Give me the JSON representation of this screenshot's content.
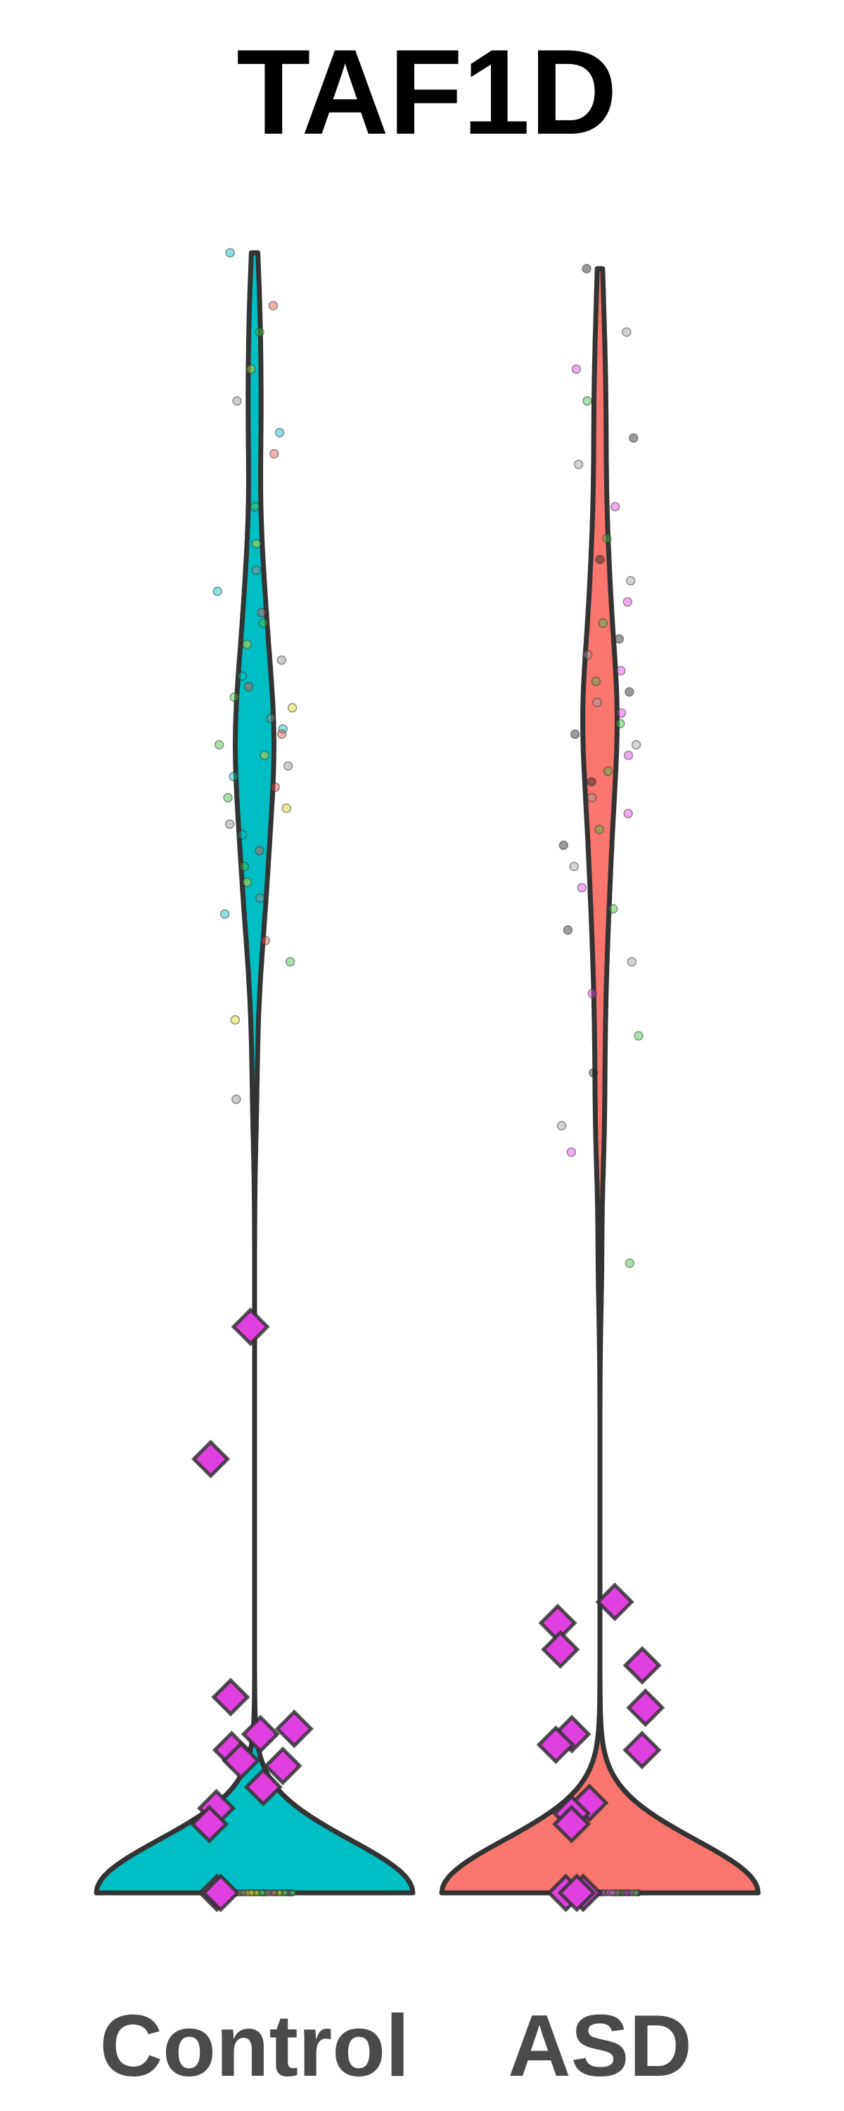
{
  "chart_data": {
    "type": "violin",
    "title": "TAF1D",
    "ylim": [
      0,
      3.2
    ],
    "groups": [
      {
        "name": "Control",
        "color": "#00bfc4",
        "point_colors": [
          "#00bfc4",
          "#e05050",
          "#40c040",
          "#d8d820",
          "#909090"
        ],
        "cells": [
          3.1,
          3.0,
          2.95,
          2.88,
          2.82,
          2.76,
          2.72,
          2.62,
          2.55,
          2.5,
          2.46,
          2.42,
          2.4,
          2.36,
          2.33,
          2.3,
          2.28,
          2.26,
          2.24,
          2.22,
          2.2,
          2.19,
          2.17,
          2.15,
          2.13,
          2.11,
          2.09,
          2.07,
          2.05,
          2.02,
          2.0,
          1.97,
          1.94,
          1.91,
          1.88,
          1.85,
          1.8,
          1.76,
          1.65,
          1.5,
          0,
          0,
          0,
          0,
          0,
          0,
          0,
          0,
          0,
          0,
          0,
          0,
          0,
          0,
          0,
          0,
          0,
          0,
          0,
          0,
          0,
          0,
          0,
          0,
          0,
          0,
          0,
          0,
          0,
          0,
          0,
          0,
          0,
          0,
          0,
          0,
          0,
          0,
          0,
          0,
          0,
          0,
          0,
          0,
          0,
          0,
          0,
          0,
          0,
          0,
          0,
          0,
          0,
          0,
          0,
          0,
          0,
          0,
          0,
          0,
          0,
          0,
          0,
          0,
          0,
          0,
          0,
          0,
          0,
          0,
          0,
          0,
          0,
          0,
          0,
          0,
          0,
          0,
          0,
          0,
          0,
          0,
          0,
          0,
          0,
          0,
          0,
          0,
          0,
          0,
          0,
          0,
          0,
          0,
          0,
          0,
          0,
          0,
          0,
          0
        ],
        "samples": [
          1.07,
          0.82,
          0.37,
          0.31,
          0.3,
          0.27,
          0.24,
          0.25,
          0.2,
          0.16,
          0.13,
          0,
          0
        ]
      },
      {
        "name": "ASD",
        "color": "#f8766d",
        "point_colors": [
          "#222222",
          "#a0a0a0",
          "#e040e0",
          "#40c040"
        ],
        "cells": [
          3.07,
          2.95,
          2.88,
          2.82,
          2.75,
          2.7,
          2.62,
          2.56,
          2.52,
          2.48,
          2.44,
          2.4,
          2.37,
          2.34,
          2.31,
          2.29,
          2.27,
          2.25,
          2.23,
          2.21,
          2.19,
          2.17,
          2.15,
          2.12,
          2.1,
          2.07,
          2.04,
          2.01,
          1.98,
          1.94,
          1.9,
          1.86,
          1.82,
          1.76,
          1.7,
          1.62,
          1.55,
          1.45,
          1.4,
          1.19,
          0,
          0,
          0,
          0,
          0,
          0,
          0,
          0,
          0,
          0,
          0,
          0,
          0,
          0,
          0,
          0,
          0,
          0,
          0,
          0,
          0,
          0,
          0,
          0,
          0,
          0,
          0,
          0,
          0,
          0,
          0,
          0,
          0,
          0,
          0,
          0,
          0,
          0,
          0,
          0,
          0,
          0,
          0,
          0,
          0,
          0,
          0,
          0,
          0,
          0,
          0,
          0,
          0,
          0,
          0,
          0,
          0,
          0,
          0,
          0,
          0,
          0,
          0,
          0,
          0,
          0,
          0,
          0,
          0,
          0,
          0,
          0,
          0,
          0,
          0,
          0,
          0,
          0,
          0,
          0,
          0,
          0,
          0,
          0,
          0,
          0,
          0,
          0,
          0,
          0,
          0,
          0,
          0,
          0,
          0,
          0,
          0,
          0,
          0,
          0
        ],
        "samples": [
          0.55,
          0.51,
          0.46,
          0.43,
          0.35,
          0.3,
          0.28,
          0.27,
          0.17,
          0.15,
          0.13,
          0,
          0,
          0
        ]
      }
    ],
    "sample_color": "#e040e0"
  }
}
